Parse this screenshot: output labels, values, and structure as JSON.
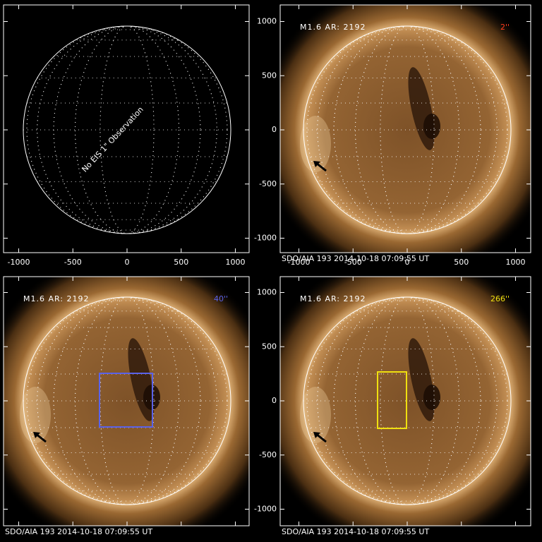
{
  "panels": [
    {
      "annotation": "No EIS 1\" Observation",
      "x_ticks": [
        "-1000",
        "-500",
        "0",
        "500",
        "1000"
      ]
    },
    {
      "title": "M1.6 AR: 2192",
      "label": "2''",
      "footer": "SDO/AIA 193 2014-10-18 07:09:55 UT",
      "x_ticks": [
        "-1000",
        "-500",
        "0",
        "500",
        "1000"
      ],
      "y_ticks": [
        "1000",
        "500",
        "0",
        "-500",
        "-1000"
      ]
    },
    {
      "title": "M1.6 AR: 2192",
      "label": "40''",
      "footer": "SDO/AIA 193 2014-10-18 07:09:55 UT"
    },
    {
      "title": "M1.6 AR: 2192",
      "label": "266''",
      "footer": "SDO/AIA 193 2014-10-18 07:09:55 UT",
      "y_ticks": [
        "1000",
        "500",
        "0",
        "-500",
        "-1000"
      ]
    }
  ]
}
